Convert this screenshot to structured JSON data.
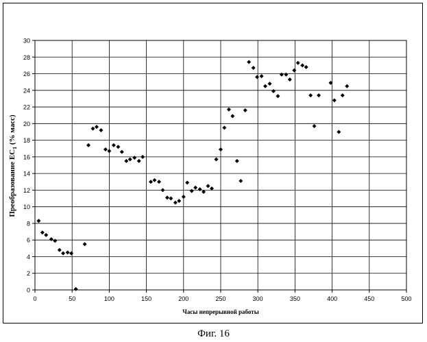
{
  "figure_caption": "Фиг. 16",
  "chart_data": {
    "type": "scatter",
    "title": "",
    "xlabel": "Часы непрерывной работы",
    "ylabel": "Преобразование EC",
    "ylabel_subscript": "1",
    "ylabel_suffix": " (% масс)",
    "xlim": [
      0,
      500
    ],
    "ylim": [
      0,
      30
    ],
    "xticks": [
      0,
      50,
      100,
      150,
      200,
      250,
      300,
      350,
      400,
      450,
      500
    ],
    "yticks": [
      0,
      2,
      4,
      6,
      8,
      10,
      12,
      14,
      16,
      18,
      20,
      22,
      24,
      26,
      28,
      30
    ],
    "grid": true,
    "legend": "none",
    "marker": "diamond",
    "marker_color": "#000000",
    "points": [
      [
        5,
        8.3
      ],
      [
        10,
        6.9
      ],
      [
        15,
        6.6
      ],
      [
        22,
        6.1
      ],
      [
        27,
        5.9
      ],
      [
        33,
        4.8
      ],
      [
        38,
        4.4
      ],
      [
        44,
        4.5
      ],
      [
        49,
        4.4
      ],
      [
        55,
        0.1
      ],
      [
        67,
        5.5
      ],
      [
        72,
        17.4
      ],
      [
        78,
        19.4
      ],
      [
        83,
        19.6
      ],
      [
        89,
        19.2
      ],
      [
        95,
        16.9
      ],
      [
        100,
        16.7
      ],
      [
        106,
        17.4
      ],
      [
        112,
        17.2
      ],
      [
        117,
        16.6
      ],
      [
        123,
        15.5
      ],
      [
        128,
        15.7
      ],
      [
        134,
        15.9
      ],
      [
        140,
        15.5
      ],
      [
        145,
        16.0
      ],
      [
        156,
        13.0
      ],
      [
        161,
        13.2
      ],
      [
        167,
        13.0
      ],
      [
        172,
        12.0
      ],
      [
        178,
        11.1
      ],
      [
        183,
        11.0
      ],
      [
        189,
        10.5
      ],
      [
        194,
        10.7
      ],
      [
        200,
        11.2
      ],
      [
        205,
        12.9
      ],
      [
        211,
        11.9
      ],
      [
        216,
        12.3
      ],
      [
        222,
        12.1
      ],
      [
        227,
        11.8
      ],
      [
        233,
        12.5
      ],
      [
        238,
        12.2
      ],
      [
        244,
        15.7
      ],
      [
        250,
        16.9
      ],
      [
        255,
        19.5
      ],
      [
        261,
        21.7
      ],
      [
        266,
        20.9
      ],
      [
        272,
        15.5
      ],
      [
        277,
        13.1
      ],
      [
        283,
        21.6
      ],
      [
        288,
        27.4
      ],
      [
        294,
        26.7
      ],
      [
        299,
        25.6
      ],
      [
        305,
        25.7
      ],
      [
        310,
        24.5
      ],
      [
        316,
        24.8
      ],
      [
        321,
        23.9
      ],
      [
        327,
        23.3
      ],
      [
        332,
        25.9
      ],
      [
        338,
        25.9
      ],
      [
        343,
        25.3
      ],
      [
        349,
        26.4
      ],
      [
        354,
        27.3
      ],
      [
        360,
        27.0
      ],
      [
        365,
        26.8
      ],
      [
        371,
        23.4
      ],
      [
        376,
        19.7
      ],
      [
        382,
        23.4
      ],
      [
        398,
        24.9
      ],
      [
        403,
        22.8
      ],
      [
        409,
        19.0
      ],
      [
        414,
        23.4
      ],
      [
        420,
        24.5
      ]
    ]
  }
}
